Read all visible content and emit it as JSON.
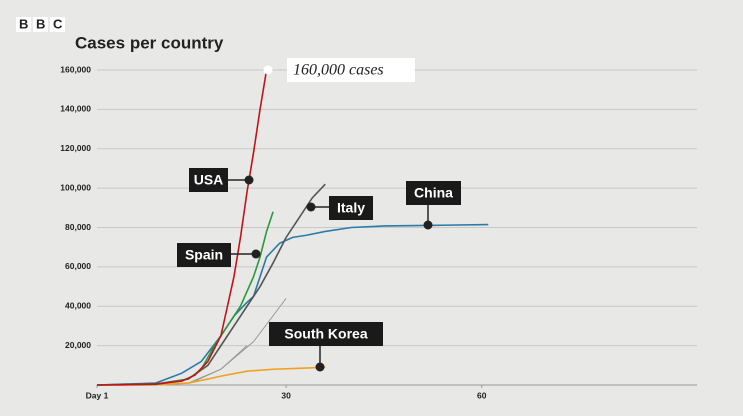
{
  "logo": "BBC",
  "chart_data": {
    "type": "line",
    "title": "Cases per country",
    "annotation": "160,000 cases",
    "xlim": [
      1,
      93
    ],
    "xticks": [
      {
        "value": 1,
        "label": "Day 1"
      },
      30,
      60
    ],
    "ylim": [
      0,
      160000
    ],
    "yticks": [
      {
        "value": 20000,
        "label": "20,000"
      },
      {
        "value": 40000,
        "label": "40,000"
      },
      {
        "value": 60000,
        "label": "60,000"
      },
      {
        "value": 80000,
        "label": "80,000"
      },
      {
        "value": 100000,
        "label": "100,000"
      },
      {
        "value": 120000,
        "label": "120,000"
      },
      {
        "value": 140000,
        "label": "140,000"
      },
      {
        "value": 160000,
        "label": "160,000"
      }
    ],
    "grid": true,
    "series": [
      {
        "name": "USA",
        "color": "#c0141c",
        "x": [
          1,
          5,
          10,
          14,
          16,
          18,
          20,
          21,
          22,
          23,
          24,
          25,
          26,
          27
        ],
        "values": [
          0,
          100,
          500,
          2000,
          5000,
          12000,
          25000,
          40000,
          55000,
          75000,
          98000,
          118000,
          140000,
          160000
        ]
      },
      {
        "name": "Spain",
        "color": "#2a9a3a",
        "x": [
          1,
          10,
          15,
          17,
          19,
          21,
          23,
          25,
          26,
          27,
          28
        ],
        "values": [
          0,
          300,
          3000,
          8000,
          20000,
          30000,
          40000,
          55000,
          65000,
          78000,
          88000
        ]
      },
      {
        "name": "Italy",
        "color": "#555555",
        "x": [
          1,
          10,
          15,
          18,
          20,
          22,
          24,
          26,
          28,
          30,
          32,
          34,
          36
        ],
        "values": [
          0,
          500,
          3000,
          10000,
          20000,
          30000,
          40000,
          50000,
          62000,
          75000,
          85000,
          95000,
          102000
        ]
      },
      {
        "name": "China",
        "color": "#2c7aa8",
        "x": [
          1,
          10,
          14,
          17,
          20,
          22,
          24,
          25,
          27,
          29,
          31,
          33,
          36,
          40,
          45,
          50,
          55,
          61
        ],
        "values": [
          0,
          1000,
          6000,
          12000,
          25000,
          35000,
          42000,
          45000,
          65000,
          72000,
          75000,
          76000,
          78000,
          80000,
          80800,
          81000,
          81200,
          81500
        ]
      },
      {
        "name": "South Korea",
        "color": "#f0a020",
        "x": [
          1,
          10,
          15,
          18,
          20,
          24,
          28,
          32,
          36
        ],
        "values": [
          0,
          100,
          1000,
          3000,
          4500,
          7000,
          8000,
          8500,
          9000
        ]
      },
      {
        "color": "#999999",
        "x": [
          15,
          20,
          25,
          30
        ],
        "values": [
          1000,
          8000,
          22000,
          44000
        ]
      },
      {
        "color": "#999999",
        "x": [
          16,
          20,
          24
        ],
        "values": [
          2000,
          8000,
          20000
        ]
      }
    ]
  }
}
